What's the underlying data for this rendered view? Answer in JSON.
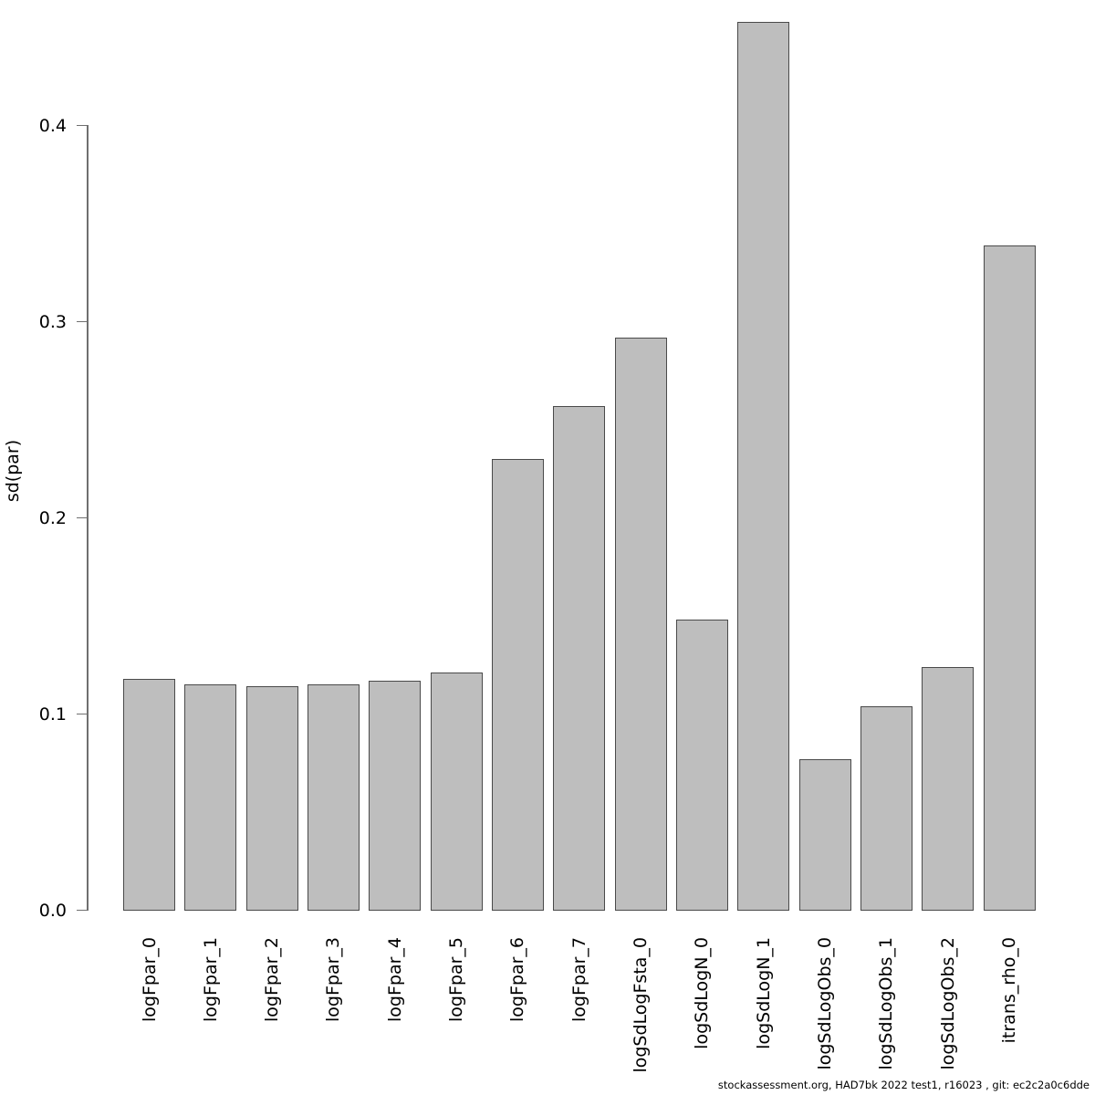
{
  "chart_data": {
    "type": "bar",
    "title": "",
    "xlabel": "",
    "ylabel": "sd(par)",
    "categories": [
      "logFpar_0",
      "logFpar_1",
      "logFpar_2",
      "logFpar_3",
      "logFpar_4",
      "logFpar_5",
      "logFpar_6",
      "logFpar_7",
      "logSdLogFsta_0",
      "logSdLogN_0",
      "logSdLogN_1",
      "logSdLogObs_0",
      "logSdLogObs_1",
      "logSdLogObs_2",
      "itrans_rho_0"
    ],
    "values": [
      0.118,
      0.115,
      0.114,
      0.115,
      0.117,
      0.121,
      0.23,
      0.257,
      0.292,
      0.148,
      0.453,
      0.077,
      0.104,
      0.124,
      0.339
    ],
    "yticks": [
      0.0,
      0.1,
      0.2,
      0.3,
      0.4
    ],
    "ytick_labels": [
      "0.0",
      "0.1",
      "0.2",
      "0.3",
      "0.4"
    ],
    "ylim": [
      0,
      0.46
    ],
    "grid": false,
    "legend": "none",
    "bar_fill_color": "#bebebe",
    "bar_border_color": "#4a4a4a",
    "axis_color": "#6f6f6f"
  },
  "footer": {
    "text": "stockassessment.org, HAD7bk 2022 test1, r16023 , git: ec2c2a0c6dde"
  }
}
